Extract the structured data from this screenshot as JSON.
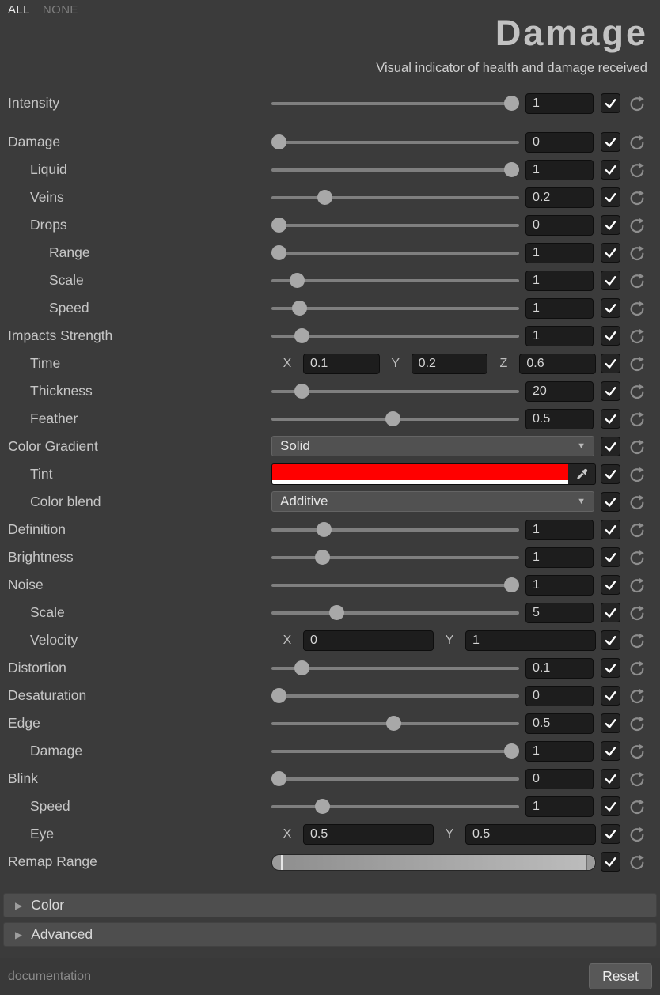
{
  "header": {
    "all_label": "ALL",
    "none_label": "NONE",
    "title": "Damage",
    "subtitle": "Visual indicator of health and damage received"
  },
  "colors": {
    "tint": "#ff0000",
    "tint_alpha_bar": "#ffffff",
    "panel_background": "#3b3b3b",
    "field_background": "#1d1d1d"
  },
  "rows": [
    {
      "label": "Intensity",
      "indent": 0,
      "type": "slider",
      "value": "1",
      "slider_pos": 1.0,
      "checked": true
    },
    {
      "label": "Damage",
      "indent": 0,
      "type": "slider",
      "value": "0",
      "slider_pos": 0.0,
      "checked": true,
      "gap_before": true
    },
    {
      "label": "Liquid",
      "indent": 1,
      "type": "slider",
      "value": "1",
      "slider_pos": 1.0,
      "checked": true
    },
    {
      "label": "Veins",
      "indent": 1,
      "type": "slider",
      "value": "0.2",
      "slider_pos": 0.2,
      "checked": true
    },
    {
      "label": "Drops",
      "indent": 1,
      "type": "slider",
      "value": "0",
      "slider_pos": 0.0,
      "checked": true
    },
    {
      "label": "Range",
      "indent": 2,
      "type": "slider",
      "value": "1",
      "slider_pos": 0.0,
      "checked": true
    },
    {
      "label": "Scale",
      "indent": 2,
      "type": "slider",
      "value": "1",
      "slider_pos": 0.08,
      "checked": true
    },
    {
      "label": "Speed",
      "indent": 2,
      "type": "slider",
      "value": "1",
      "slider_pos": 0.09,
      "checked": true
    },
    {
      "label": "Impacts Strength",
      "indent": 0,
      "type": "slider",
      "value": "1",
      "slider_pos": 0.1,
      "checked": true
    },
    {
      "label": "Time",
      "indent": 1,
      "type": "vec",
      "checked": true,
      "fields": [
        {
          "axis": "X",
          "value": "0.1"
        },
        {
          "axis": "Y",
          "value": "0.2"
        },
        {
          "axis": "Z",
          "value": "0.6"
        }
      ]
    },
    {
      "label": "Thickness",
      "indent": 1,
      "type": "slider",
      "value": "20",
      "slider_pos": 0.1,
      "checked": true
    },
    {
      "label": "Feather",
      "indent": 1,
      "type": "slider",
      "value": "0.5",
      "slider_pos": 0.49,
      "checked": true
    },
    {
      "label": "Color Gradient",
      "indent": 0,
      "type": "dropdown",
      "value": "Solid",
      "checked": true
    },
    {
      "label": "Tint",
      "indent": 1,
      "type": "color",
      "color": "#ff0000",
      "checked": true
    },
    {
      "label": "Color blend",
      "indent": 1,
      "type": "dropdown",
      "value": "Additive",
      "checked": true
    },
    {
      "label": "Definition",
      "indent": 0,
      "type": "slider",
      "value": "1",
      "slider_pos": 0.195,
      "checked": true
    },
    {
      "label": "Brightness",
      "indent": 0,
      "type": "slider",
      "value": "1",
      "slider_pos": 0.19,
      "checked": true
    },
    {
      "label": "Noise",
      "indent": 0,
      "type": "slider",
      "value": "1",
      "slider_pos": 1.0,
      "checked": true
    },
    {
      "label": "Scale",
      "indent": 1,
      "type": "slider",
      "value": "5",
      "slider_pos": 0.25,
      "checked": true
    },
    {
      "label": "Velocity",
      "indent": 1,
      "type": "vec",
      "checked": true,
      "fields": [
        {
          "axis": "X",
          "value": "0"
        },
        {
          "axis": "Y",
          "value": "1"
        }
      ]
    },
    {
      "label": "Distortion",
      "indent": 0,
      "type": "slider",
      "value": "0.1",
      "slider_pos": 0.1,
      "checked": true
    },
    {
      "label": "Desaturation",
      "indent": 0,
      "type": "slider",
      "value": "0",
      "slider_pos": 0.0,
      "checked": true
    },
    {
      "label": "Edge",
      "indent": 0,
      "type": "slider",
      "value": "0.5",
      "slider_pos": 0.495,
      "checked": true
    },
    {
      "label": "Damage",
      "indent": 1,
      "type": "slider",
      "value": "1",
      "slider_pos": 1.0,
      "checked": true
    },
    {
      "label": "Blink",
      "indent": 0,
      "type": "slider",
      "value": "0",
      "slider_pos": 0.0,
      "checked": true
    },
    {
      "label": "Speed",
      "indent": 1,
      "type": "slider",
      "value": "1",
      "slider_pos": 0.19,
      "checked": true
    },
    {
      "label": "Eye",
      "indent": 1,
      "type": "vec",
      "checked": true,
      "fields": [
        {
          "axis": "X",
          "value": "0.5"
        },
        {
          "axis": "Y",
          "value": "0.5"
        }
      ]
    },
    {
      "label": "Remap Range",
      "indent": 0,
      "type": "range",
      "checked": true
    }
  ],
  "sections": [
    {
      "label": "Color"
    },
    {
      "label": "Advanced"
    }
  ],
  "footer": {
    "documentation_label": "documentation",
    "reset_label": "Reset"
  }
}
